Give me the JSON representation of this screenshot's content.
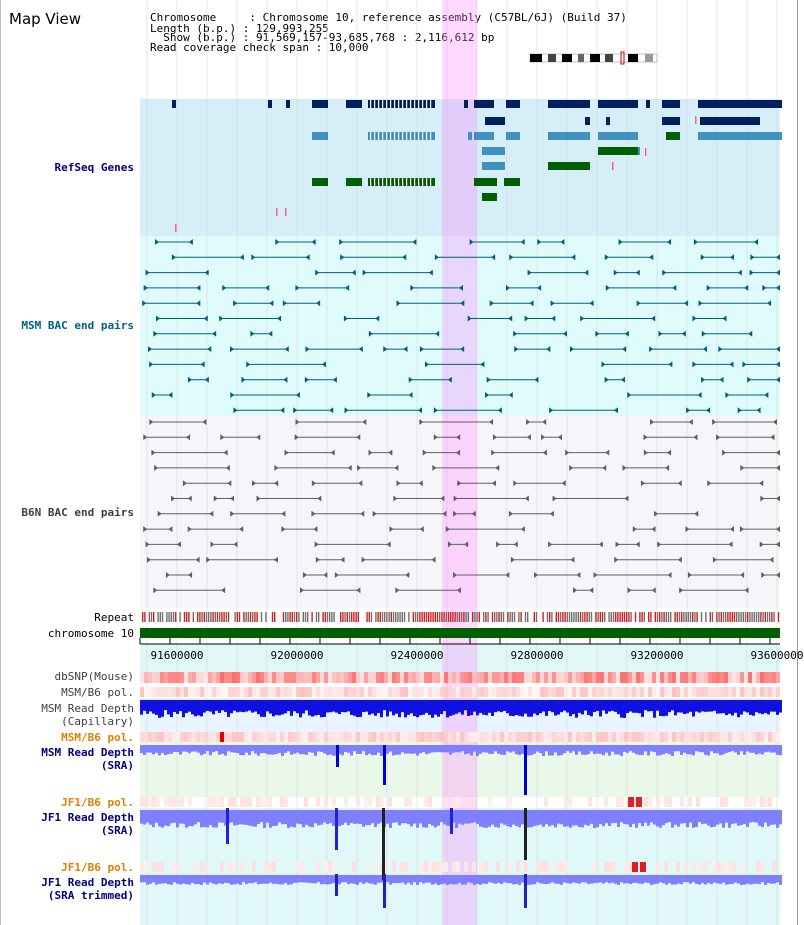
{
  "header": {
    "title": "Map View",
    "info_lines": [
      "Chromosome     : Chromosome 10, reference assembly (C57BL/6J) (Build 37)",
      "Length (b.p.) : 129,993,255",
      "  Show (b.p.) : 91,569,157-93,685,768 : 2,116,612 bp",
      "Read coverage check span : 10,000"
    ]
  },
  "tracks": {
    "refseq": "RefSeq Genes",
    "msm_bac": "MSM BAC end pairs",
    "b6n_bac": "B6N BAC end pairs",
    "repeat": "Repeat",
    "chromosome": "chromosome 10",
    "dbsnp": "dbSNP(Mouse)",
    "msm_b6_pol_1": "MSM/B6 pol.",
    "msm_depth_cap_1": "MSM Read Depth",
    "msm_depth_cap_2": "(Capillary)",
    "msm_b6_pol_2": "MSM/B6 pol.",
    "msm_depth_sra_1": "MSM Read Depth",
    "msm_depth_sra_2": "(SRA)",
    "jf1_b6_pol_1": "JF1/B6 pol.",
    "jf1_depth_sra_1": "JF1 Read Depth",
    "jf1_depth_sra_2": "(SRA)",
    "jf1_b6_pol_2": "JF1/B6 pol.",
    "jf1_depth_trim_1": "JF1 Read Depth",
    "jf1_depth_trim_2": "(SRA trimmed)"
  },
  "axis": {
    "ticks": [
      "91600000",
      "92000000",
      "92400000",
      "92800000",
      "93200000",
      "93600000"
    ]
  },
  "colors": {
    "gene_dark": "#002060",
    "gene_mid": "#4090c0",
    "gene_green": "#006000",
    "bac_msm": "#006080",
    "bac_b6n": "#606060",
    "highlight": "#ff80ff",
    "depth_blue": "#2020ff",
    "depth_light": "#8080ff"
  }
}
